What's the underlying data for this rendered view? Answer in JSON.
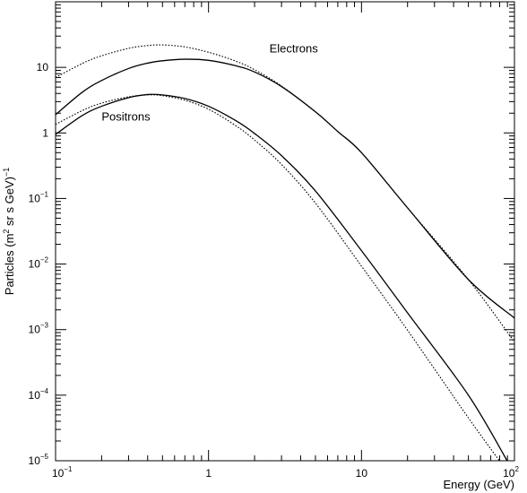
{
  "chart_data": {
    "type": "line",
    "xlabel": "Energy (GeV)",
    "ylabel": {
      "text": "Particles (m",
      "sup1": "2",
      "mid": " sr s GeV)",
      "sup2": "−1"
    },
    "x_scale": "log",
    "y_scale": "log",
    "xlim": [
      0.1,
      100
    ],
    "ylim": [
      1e-05,
      100
    ],
    "grid": false,
    "x_ticks": [
      {
        "value": 0.1,
        "base": "10",
        "exp": "−1"
      },
      {
        "value": 1,
        "base": "1",
        "exp": ""
      },
      {
        "value": 10,
        "base": "10",
        "exp": ""
      },
      {
        "value": 100,
        "base": "10",
        "exp": "2"
      }
    ],
    "y_ticks": [
      {
        "value": 1e-05,
        "base": "10",
        "exp": "−5"
      },
      {
        "value": 0.0001,
        "base": "10",
        "exp": "−4"
      },
      {
        "value": 0.001,
        "base": "10",
        "exp": "−3"
      },
      {
        "value": 0.01,
        "base": "10",
        "exp": "−2"
      },
      {
        "value": 0.1,
        "base": "10",
        "exp": "−1"
      },
      {
        "value": 1,
        "base": "1",
        "exp": ""
      },
      {
        "value": 10,
        "base": "10",
        "exp": ""
      }
    ],
    "annotations": [
      {
        "text": "Electrons",
        "x": 2.5,
        "y": 17
      },
      {
        "text": "Positrons",
        "x": 0.2,
        "y": 1.55
      }
    ],
    "series": [
      {
        "group": "electrons",
        "style": "dotted",
        "x": [
          0.1,
          0.15,
          0.2,
          0.3,
          0.4,
          0.5,
          0.7,
          1,
          1.5,
          2,
          3,
          5,
          7,
          10,
          20,
          50,
          100
        ],
        "y": [
          7.0,
          11.5,
          15.0,
          19.5,
          21.5,
          22.0,
          20.5,
          17.0,
          12.5,
          9.2,
          5.2,
          2.1,
          1.05,
          0.5,
          0.072,
          0.0058,
          0.00065
        ]
      },
      {
        "group": "electrons",
        "style": "solid",
        "x": [
          0.1,
          0.15,
          0.2,
          0.3,
          0.4,
          0.5,
          0.7,
          1,
          1.5,
          2,
          3,
          5,
          7,
          10,
          20,
          50,
          100
        ],
        "y": [
          1.9,
          4.2,
          6.3,
          9.6,
          11.6,
          12.6,
          13.3,
          12.8,
          10.6,
          8.5,
          5.1,
          2.1,
          1.05,
          0.5,
          0.072,
          0.0058,
          0.0015
        ]
      },
      {
        "group": "positrons",
        "style": "dotted",
        "x": [
          0.1,
          0.15,
          0.2,
          0.3,
          0.4,
          0.5,
          0.7,
          1,
          1.5,
          2,
          3,
          5,
          10,
          20,
          50,
          80
        ],
        "y": [
          1.35,
          2.2,
          2.85,
          3.55,
          3.8,
          3.7,
          3.15,
          2.3,
          1.3,
          0.78,
          0.33,
          0.085,
          0.0093,
          0.00098,
          4.5e-05,
          9.9e-06
        ]
      },
      {
        "group": "positrons",
        "style": "solid",
        "x": [
          0.1,
          0.15,
          0.2,
          0.3,
          0.4,
          0.5,
          0.7,
          1,
          1.5,
          2,
          3,
          5,
          10,
          20,
          50,
          90
        ],
        "y": [
          0.95,
          1.85,
          2.55,
          3.45,
          3.85,
          3.8,
          3.35,
          2.55,
          1.55,
          0.98,
          0.45,
          0.13,
          0.016,
          0.0018,
          0.0001,
          9.8e-06
        ]
      }
    ]
  }
}
